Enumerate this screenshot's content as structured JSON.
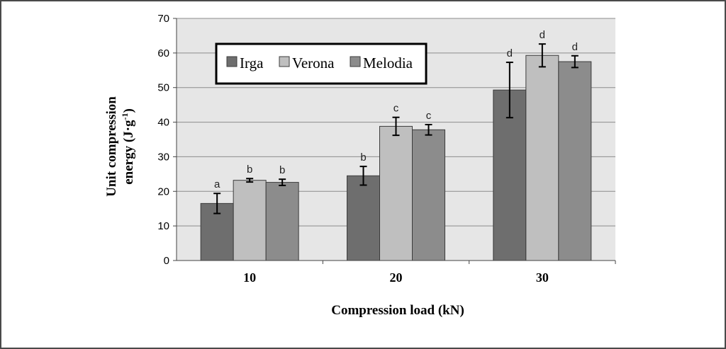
{
  "chart_data": {
    "type": "bar",
    "categories": [
      "10",
      "20",
      "30"
    ],
    "xlabel": "Compression load (kN)",
    "ylabel_line1": "Unit compression",
    "ylabel_line2_prefix": "energy (J·g",
    "ylabel_line2_sup": "-1",
    "ylabel_line2_suffix": ")",
    "ylim": [
      0,
      70
    ],
    "yticks": [
      0,
      10,
      20,
      30,
      40,
      50,
      60,
      70
    ],
    "grid": true,
    "legend_position": "top-left",
    "series": [
      {
        "name": "Irga",
        "color": "#6e6e6e",
        "values": [
          16.5,
          24.5,
          49.3
        ],
        "errors": [
          2.9,
          2.7,
          8.0
        ],
        "letters": [
          "a",
          "b",
          "d"
        ]
      },
      {
        "name": "Verona",
        "color": "#bfbfbf",
        "values": [
          23.2,
          38.8,
          59.3
        ],
        "errors": [
          0.5,
          2.6,
          3.3
        ],
        "letters": [
          "b",
          "c",
          "d"
        ]
      },
      {
        "name": "Melodia",
        "color": "#8c8c8c",
        "values": [
          22.6,
          37.8,
          57.5
        ],
        "errors": [
          0.9,
          1.5,
          1.7
        ],
        "letters": [
          "b",
          "c",
          "d"
        ]
      }
    ]
  },
  "style": {
    "plot_background": "#e6e6e6",
    "grid_color": "#8c8c8c",
    "bar_stroke": "#3c3c3c"
  }
}
